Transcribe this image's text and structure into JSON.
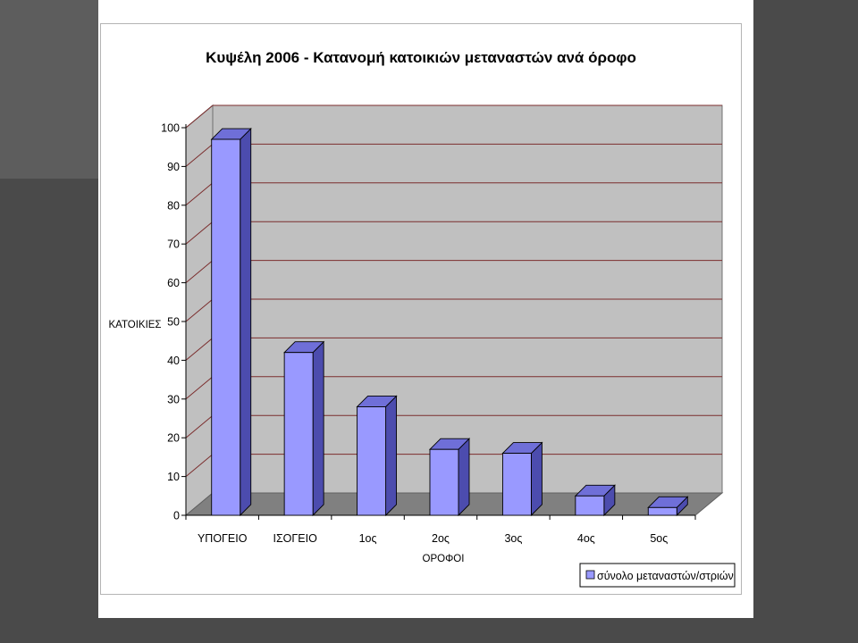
{
  "chart_data": {
    "type": "bar",
    "title": "Κυψέλη 2006 - Κατανομή κατοικιών μεταναστών ανά όροφο",
    "xlabel": "ΟΡΟΦΟΙ",
    "ylabel": "ΚΑΤΟΙΚΙΕΣ",
    "categories": [
      "ΥΠΟΓΕΙΟ",
      "ΙΣΟΓΕΙΟ",
      "1ος",
      "2ος",
      "3ος",
      "4ος",
      "5ος"
    ],
    "series": [
      {
        "name": "σύνολο μεταναστών/στριών",
        "values": [
          97,
          42,
          28,
          17,
          16,
          5,
          2
        ]
      }
    ],
    "ylim": [
      0,
      100
    ],
    "yticks": [
      0,
      10,
      20,
      30,
      40,
      50,
      60,
      70,
      80,
      90,
      100
    ],
    "grid": true,
    "legend_position": "bottom-right",
    "colors": {
      "bar_front": "#9999ff",
      "bar_top": "#6f6fd8",
      "bar_side": "#4c4cae",
      "bar_outline": "#000000",
      "back_wall": "#c0c0c0",
      "floor": "#808080",
      "gridline": "#7b2d2d"
    }
  }
}
